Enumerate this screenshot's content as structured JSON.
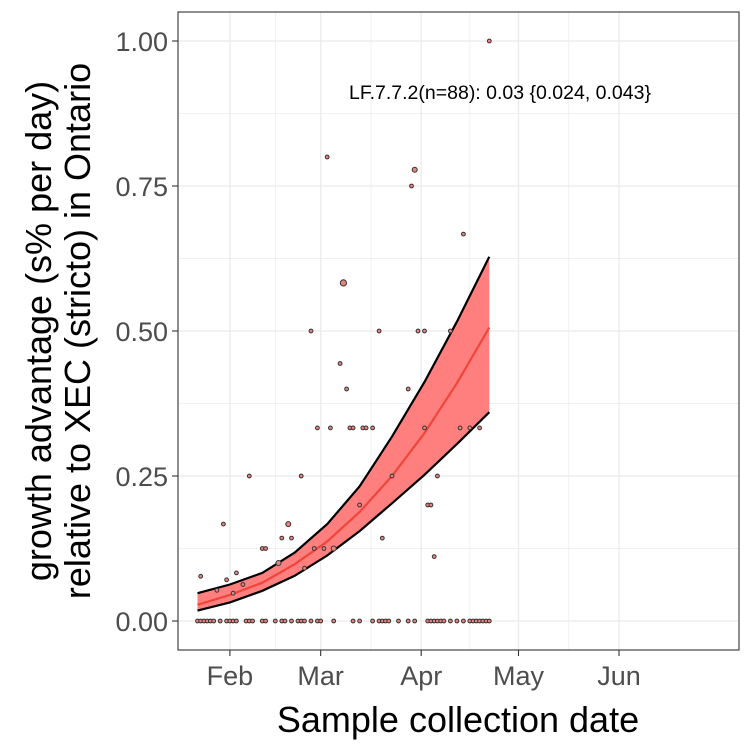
{
  "chart_data": {
    "type": "scatter",
    "title": "",
    "xlabel": "Sample collection date",
    "ylabel_line1": "growth advantage (s% per day)",
    "ylabel_line2": "relative to XEC (stricto) in Ontario",
    "annotation": "LF.7.7.2(n=88): 0.03 {0.024, 0.043}",
    "x_range": [
      "2025-01-16",
      "2025-07-08"
    ],
    "ylim": [
      -0.05,
      1.05
    ],
    "x_ticks": [
      {
        "date": "2025-02-01",
        "label": "Feb"
      },
      {
        "date": "2025-03-01",
        "label": "Mar"
      },
      {
        "date": "2025-04-01",
        "label": "Apr"
      },
      {
        "date": "2025-05-01",
        "label": "May"
      },
      {
        "date": "2025-06-01",
        "label": "Jun"
      }
    ],
    "y_ticks": [
      {
        "value": 0.0,
        "label": "0.00"
      },
      {
        "value": 0.25,
        "label": "0.25"
      },
      {
        "value": 0.5,
        "label": "0.50"
      },
      {
        "value": 0.75,
        "label": "0.75"
      },
      {
        "value": 1.0,
        "label": "1.00"
      }
    ],
    "grid": true,
    "colors": {
      "ribbon": "#ff7f7f",
      "fit_line": "#f0453a",
      "ribbon_edge": "#000000",
      "point_fill": "#e8837d",
      "point_edge": "#333333",
      "grid": "#ebebeb",
      "panel_border": "#333333"
    },
    "fit": {
      "x": [
        "2025-01-22",
        "2025-02-01",
        "2025-02-11",
        "2025-02-21",
        "2025-03-03",
        "2025-03-13",
        "2025-03-23",
        "2025-04-02",
        "2025-04-12",
        "2025-04-22"
      ],
      "fit": [
        0.028,
        0.045,
        0.066,
        0.098,
        0.137,
        0.188,
        0.25,
        0.324,
        0.41,
        0.506
      ],
      "lower": [
        0.018,
        0.032,
        0.052,
        0.078,
        0.113,
        0.155,
        0.203,
        0.252,
        0.305,
        0.36
      ],
      "upper": [
        0.048,
        0.063,
        0.083,
        0.118,
        0.167,
        0.232,
        0.318,
        0.412,
        0.516,
        0.628
      ]
    },
    "points": [
      {
        "x": "2025-01-22",
        "y": 0.0,
        "n": 1
      },
      {
        "x": "2025-01-23",
        "y": 0.0,
        "n": 1
      },
      {
        "x": "2025-01-24",
        "y": 0.0,
        "n": 1
      },
      {
        "x": "2025-01-25",
        "y": 0.0,
        "n": 1
      },
      {
        "x": "2025-01-26",
        "y": 0.0,
        "n": 1
      },
      {
        "x": "2025-01-27",
        "y": 0.0,
        "n": 1
      },
      {
        "x": "2025-01-29",
        "y": 0.0,
        "n": 1
      },
      {
        "x": "2025-01-31",
        "y": 0.0,
        "n": 1
      },
      {
        "x": "2025-02-01",
        "y": 0.0,
        "n": 1
      },
      {
        "x": "2025-02-02",
        "y": 0.0,
        "n": 1
      },
      {
        "x": "2025-02-03",
        "y": 0.0,
        "n": 1
      },
      {
        "x": "2025-02-06",
        "y": 0.0,
        "n": 1
      },
      {
        "x": "2025-02-07",
        "y": 0.0,
        "n": 1
      },
      {
        "x": "2025-02-08",
        "y": 0.0,
        "n": 1
      },
      {
        "x": "2025-02-11",
        "y": 0.0,
        "n": 1
      },
      {
        "x": "2025-02-12",
        "y": 0.0,
        "n": 1
      },
      {
        "x": "2025-02-15",
        "y": 0.0,
        "n": 1
      },
      {
        "x": "2025-02-17",
        "y": 0.0,
        "n": 1
      },
      {
        "x": "2025-02-18",
        "y": 0.0,
        "n": 1
      },
      {
        "x": "2025-02-20",
        "y": 0.0,
        "n": 1
      },
      {
        "x": "2025-02-22",
        "y": 0.0,
        "n": 1
      },
      {
        "x": "2025-02-23",
        "y": 0.0,
        "n": 1
      },
      {
        "x": "2025-02-24",
        "y": 0.0,
        "n": 1
      },
      {
        "x": "2025-02-26",
        "y": 0.0,
        "n": 1
      },
      {
        "x": "2025-02-28",
        "y": 0.0,
        "n": 1
      },
      {
        "x": "2025-03-01",
        "y": 0.0,
        "n": 1
      },
      {
        "x": "2025-03-05",
        "y": 0.0,
        "n": 1
      },
      {
        "x": "2025-03-11",
        "y": 0.0,
        "n": 1
      },
      {
        "x": "2025-03-13",
        "y": 0.0,
        "n": 1
      },
      {
        "x": "2025-03-17",
        "y": 0.0,
        "n": 1
      },
      {
        "x": "2025-03-19",
        "y": 0.0,
        "n": 1
      },
      {
        "x": "2025-03-20",
        "y": 0.0,
        "n": 1
      },
      {
        "x": "2025-03-21",
        "y": 0.0,
        "n": 1
      },
      {
        "x": "2025-03-22",
        "y": 0.0,
        "n": 1
      },
      {
        "x": "2025-03-25",
        "y": 0.0,
        "n": 1
      },
      {
        "x": "2025-03-28",
        "y": 0.0,
        "n": 1
      },
      {
        "x": "2025-03-30",
        "y": 0.0,
        "n": 1
      },
      {
        "x": "2025-04-03",
        "y": 0.0,
        "n": 1
      },
      {
        "x": "2025-04-04",
        "y": 0.0,
        "n": 1
      },
      {
        "x": "2025-04-05",
        "y": 0.0,
        "n": 1
      },
      {
        "x": "2025-04-06",
        "y": 0.0,
        "n": 1
      },
      {
        "x": "2025-04-07",
        "y": 0.0,
        "n": 1
      },
      {
        "x": "2025-04-08",
        "y": 0.0,
        "n": 1
      },
      {
        "x": "2025-04-10",
        "y": 0.0,
        "n": 1
      },
      {
        "x": "2025-04-12",
        "y": 0.0,
        "n": 1
      },
      {
        "x": "2025-04-14",
        "y": 0.0,
        "n": 1
      },
      {
        "x": "2025-04-16",
        "y": 0.0,
        "n": 1
      },
      {
        "x": "2025-04-17",
        "y": 0.0,
        "n": 1
      },
      {
        "x": "2025-04-18",
        "y": 0.0,
        "n": 1
      },
      {
        "x": "2025-04-19",
        "y": 0.0,
        "n": 1
      },
      {
        "x": "2025-04-20",
        "y": 0.0,
        "n": 1
      },
      {
        "x": "2025-04-21",
        "y": 0.0,
        "n": 1
      },
      {
        "x": "2025-04-22",
        "y": 0.0,
        "n": 1
      },
      {
        "x": "2025-01-23",
        "y": 0.077,
        "n": 1
      },
      {
        "x": "2025-01-28",
        "y": 0.053,
        "n": 1
      },
      {
        "x": "2025-01-30",
        "y": 0.167,
        "n": 1
      },
      {
        "x": "2025-01-31",
        "y": 0.071,
        "n": 1
      },
      {
        "x": "2025-02-02",
        "y": 0.048,
        "n": 1
      },
      {
        "x": "2025-02-03",
        "y": 0.083,
        "n": 1
      },
      {
        "x": "2025-02-05",
        "y": 0.063,
        "n": 1
      },
      {
        "x": "2025-02-07",
        "y": 0.25,
        "n": 1
      },
      {
        "x": "2025-02-11",
        "y": 0.125,
        "n": 1
      },
      {
        "x": "2025-02-12",
        "y": 0.125,
        "n": 1
      },
      {
        "x": "2025-02-16",
        "y": 0.1,
        "n": 2
      },
      {
        "x": "2025-02-17",
        "y": 0.143,
        "n": 1
      },
      {
        "x": "2025-02-19",
        "y": 0.167,
        "n": 2
      },
      {
        "x": "2025-02-20",
        "y": 0.143,
        "n": 1
      },
      {
        "x": "2025-02-23",
        "y": 0.25,
        "n": 1
      },
      {
        "x": "2025-02-24",
        "y": 0.091,
        "n": 1
      },
      {
        "x": "2025-02-26",
        "y": 0.5,
        "n": 1
      },
      {
        "x": "2025-02-27",
        "y": 0.125,
        "n": 1
      },
      {
        "x": "2025-02-28",
        "y": 0.333,
        "n": 1
      },
      {
        "x": "2025-03-02",
        "y": 0.125,
        "n": 1
      },
      {
        "x": "2025-03-03",
        "y": 0.8,
        "n": 1
      },
      {
        "x": "2025-03-04",
        "y": 0.333,
        "n": 1
      },
      {
        "x": "2025-03-05",
        "y": 0.125,
        "n": 2
      },
      {
        "x": "2025-03-07",
        "y": 0.444,
        "n": 1
      },
      {
        "x": "2025-03-08",
        "y": 0.583,
        "n": 3
      },
      {
        "x": "2025-03-09",
        "y": 0.4,
        "n": 1
      },
      {
        "x": "2025-03-10",
        "y": 0.333,
        "n": 1
      },
      {
        "x": "2025-03-11",
        "y": 0.333,
        "n": 1
      },
      {
        "x": "2025-03-13",
        "y": 0.2,
        "n": 1
      },
      {
        "x": "2025-03-14",
        "y": 0.333,
        "n": 1
      },
      {
        "x": "2025-03-15",
        "y": 0.333,
        "n": 1
      },
      {
        "x": "2025-03-17",
        "y": 0.333,
        "n": 1
      },
      {
        "x": "2025-03-19",
        "y": 0.5,
        "n": 1
      },
      {
        "x": "2025-03-20",
        "y": 0.143,
        "n": 1
      },
      {
        "x": "2025-03-23",
        "y": 0.25,
        "n": 1
      },
      {
        "x": "2025-03-28",
        "y": 0.4,
        "n": 1
      },
      {
        "x": "2025-03-29",
        "y": 0.75,
        "n": 1
      },
      {
        "x": "2025-03-30",
        "y": 0.778,
        "n": 2
      },
      {
        "x": "2025-03-31",
        "y": 0.5,
        "n": 1
      },
      {
        "x": "2025-04-02",
        "y": 0.5,
        "n": 1
      },
      {
        "x": "2025-04-02",
        "y": 0.333,
        "n": 1
      },
      {
        "x": "2025-04-03",
        "y": 0.2,
        "n": 1
      },
      {
        "x": "2025-04-04",
        "y": 0.2,
        "n": 1
      },
      {
        "x": "2025-04-05",
        "y": 0.111,
        "n": 1
      },
      {
        "x": "2025-04-06",
        "y": 0.25,
        "n": 1
      },
      {
        "x": "2025-04-10",
        "y": 0.5,
        "n": 1
      },
      {
        "x": "2025-04-13",
        "y": 0.333,
        "n": 1
      },
      {
        "x": "2025-04-14",
        "y": 0.667,
        "n": 1
      },
      {
        "x": "2025-04-16",
        "y": 0.333,
        "n": 1
      },
      {
        "x": "2025-04-19",
        "y": 0.333,
        "n": 1
      },
      {
        "x": "2025-04-22",
        "y": 1.0,
        "n": 1
      }
    ]
  }
}
